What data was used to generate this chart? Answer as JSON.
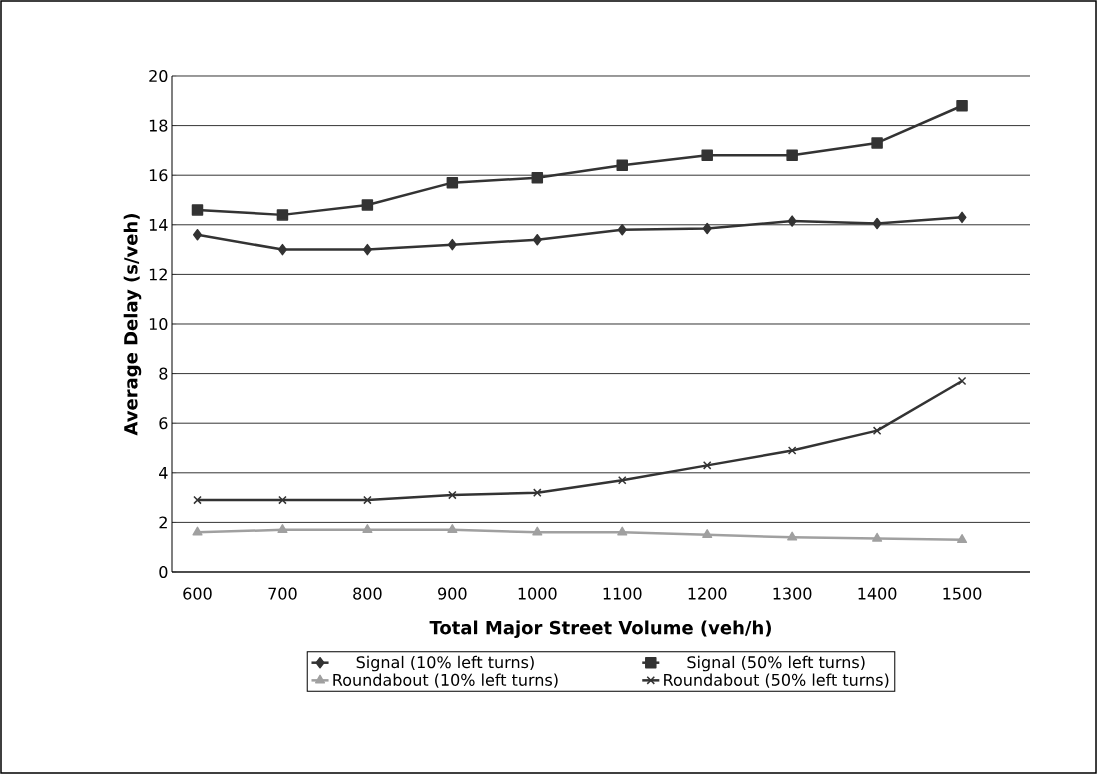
{
  "chart_data": {
    "type": "line",
    "xlabel": "Total Major Street Volume (veh/h)",
    "ylabel": "Average Delay (s/veh)",
    "categories": [
      "600",
      "700",
      "800",
      "900",
      "1000",
      "1100",
      "1200",
      "1300",
      "1400",
      "1500"
    ],
    "series": [
      {
        "name": "Signal (10% left turns)",
        "color": "#333333",
        "marker": "diamond",
        "values": [
          13.6,
          13.0,
          13.0,
          13.2,
          13.4,
          13.8,
          13.85,
          14.15,
          14.05,
          14.3
        ]
      },
      {
        "name": "Signal (50% left turns)",
        "color": "#333333",
        "marker": "square",
        "values": [
          14.6,
          14.4,
          14.8,
          15.7,
          15.9,
          16.4,
          16.8,
          16.8,
          17.3,
          18.8
        ]
      },
      {
        "name": "Roundabout (10% left turns)",
        "color": "#a0a0a0",
        "marker": "triangle",
        "values": [
          1.6,
          1.7,
          1.7,
          1.7,
          1.6,
          1.6,
          1.5,
          1.4,
          1.35,
          1.3
        ]
      },
      {
        "name": "Roundabout (50% left turns)",
        "color": "#333333",
        "marker": "cross",
        "values": [
          2.9,
          2.9,
          2.9,
          3.1,
          3.2,
          3.7,
          4.3,
          4.9,
          5.7,
          7.7
        ]
      }
    ],
    "ylim": [
      0,
      20
    ],
    "yticks": [
      0,
      2,
      4,
      6,
      8,
      10,
      12,
      14,
      16,
      18,
      20
    ],
    "grid": "y",
    "legend": "bottom"
  }
}
